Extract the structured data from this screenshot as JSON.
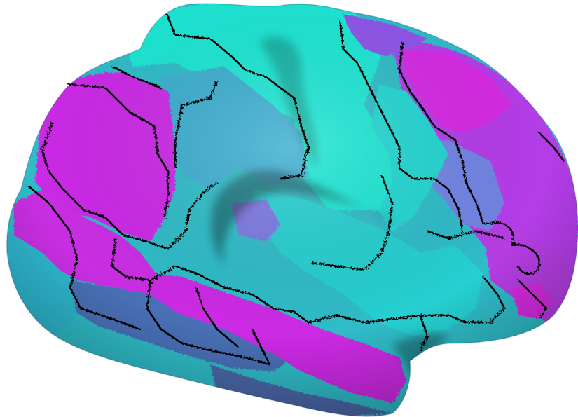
{
  "figure": {
    "subject": "inflated-cortical-surface",
    "view": "lateral",
    "background": "#ffffff",
    "palette": {
      "cyan": "#1fe6d4",
      "teal": "#2fbcc8",
      "steel": "#3fa6c8",
      "periwinkle": "#6f86e0",
      "violet": "#8a55e6",
      "purple": "#b635e8",
      "magenta": "#d327e6",
      "slate": "#4a6fb0",
      "outline": "#000000"
    }
  }
}
